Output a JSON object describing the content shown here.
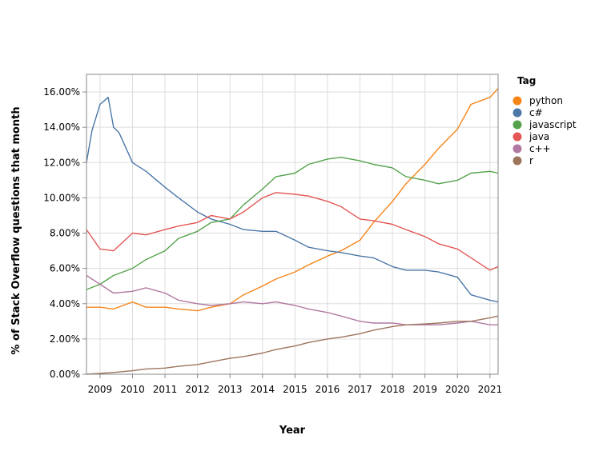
{
  "chart_data": {
    "type": "line",
    "xlabel": "Year",
    "ylabel": "% of Stack Overflow questions that month",
    "legend_title": "Tag",
    "legend_position": "right",
    "grid": true,
    "xlim": [
      "2008-08",
      "2021-04"
    ],
    "ylim": [
      0,
      17
    ],
    "y_ticks": [
      "0.00%",
      "2.00%",
      "4.00%",
      "6.00%",
      "8.00%",
      "10.00%",
      "12.00%",
      "14.00%",
      "16.00%"
    ],
    "x_ticks": [
      "2009",
      "2010",
      "2011",
      "2012",
      "2013",
      "2014",
      "2015",
      "2016",
      "2017",
      "2018",
      "2019",
      "2020",
      "2021"
    ],
    "series": [
      {
        "name": "python",
        "color": "#f58518",
        "x": [
          "2008-08",
          "2009-01",
          "2009-06",
          "2010-01",
          "2010-06",
          "2011-01",
          "2011-06",
          "2012-01",
          "2012-06",
          "2013-01",
          "2013-06",
          "2014-01",
          "2014-06",
          "2015-01",
          "2015-06",
          "2016-01",
          "2016-06",
          "2017-01",
          "2017-06",
          "2018-01",
          "2018-06",
          "2019-01",
          "2019-06",
          "2020-01",
          "2020-06",
          "2021-01",
          "2021-04"
        ],
        "y": [
          3.8,
          3.8,
          3.7,
          4.1,
          3.8,
          3.8,
          3.7,
          3.6,
          3.8,
          4.0,
          4.5,
          5.0,
          5.4,
          5.8,
          6.2,
          6.7,
          7.0,
          7.6,
          8.6,
          9.8,
          10.8,
          11.9,
          12.8,
          13.9,
          15.3,
          15.7,
          16.2
        ]
      },
      {
        "name": "c#",
        "color": "#4c78a8",
        "x": [
          "2008-08",
          "2008-10",
          "2009-01",
          "2009-04",
          "2009-06",
          "2009-08",
          "2010-01",
          "2010-06",
          "2011-01",
          "2011-06",
          "2012-01",
          "2012-06",
          "2013-01",
          "2013-06",
          "2014-01",
          "2014-06",
          "2015-01",
          "2015-06",
          "2016-01",
          "2016-06",
          "2017-01",
          "2017-06",
          "2018-01",
          "2018-06",
          "2019-01",
          "2019-06",
          "2020-01",
          "2020-06",
          "2021-01",
          "2021-04"
        ],
        "y": [
          12.0,
          13.8,
          15.3,
          15.7,
          14.0,
          13.7,
          12.0,
          11.5,
          10.6,
          10.0,
          9.2,
          8.8,
          8.5,
          8.2,
          8.1,
          8.1,
          7.6,
          7.2,
          7.0,
          6.9,
          6.7,
          6.6,
          6.1,
          5.9,
          5.9,
          5.8,
          5.5,
          4.5,
          4.2,
          4.1
        ]
      },
      {
        "name": "javascript",
        "color": "#54a24b",
        "x": [
          "2008-08",
          "2009-01",
          "2009-06",
          "2010-01",
          "2010-06",
          "2011-01",
          "2011-06",
          "2012-01",
          "2012-06",
          "2013-01",
          "2013-06",
          "2014-01",
          "2014-06",
          "2015-01",
          "2015-06",
          "2016-01",
          "2016-06",
          "2017-01",
          "2017-06",
          "2018-01",
          "2018-06",
          "2019-01",
          "2019-06",
          "2020-01",
          "2020-06",
          "2021-01",
          "2021-04"
        ],
        "y": [
          4.8,
          5.1,
          5.6,
          6.0,
          6.5,
          7.0,
          7.7,
          8.1,
          8.6,
          8.8,
          9.6,
          10.5,
          11.2,
          11.4,
          11.9,
          12.2,
          12.3,
          12.1,
          11.9,
          11.7,
          11.2,
          11.0,
          10.8,
          11.0,
          11.4,
          11.5,
          11.4
        ]
      },
      {
        "name": "java",
        "color": "#e45756",
        "x": [
          "2008-08",
          "2009-01",
          "2009-06",
          "2010-01",
          "2010-06",
          "2011-01",
          "2011-06",
          "2012-01",
          "2012-06",
          "2013-01",
          "2013-06",
          "2014-01",
          "2014-06",
          "2015-01",
          "2015-06",
          "2016-01",
          "2016-06",
          "2017-01",
          "2017-06",
          "2018-01",
          "2018-06",
          "2019-01",
          "2019-06",
          "2020-01",
          "2020-06",
          "2021-01",
          "2021-04"
        ],
        "y": [
          8.2,
          7.1,
          7.0,
          8.0,
          7.9,
          8.2,
          8.4,
          8.6,
          9.0,
          8.8,
          9.2,
          10.0,
          10.3,
          10.2,
          10.1,
          9.8,
          9.5,
          8.8,
          8.7,
          8.5,
          8.2,
          7.8,
          7.4,
          7.1,
          6.6,
          5.9,
          6.1
        ]
      },
      {
        "name": "c++",
        "color": "#b279a2",
        "x": [
          "2008-08",
          "2009-01",
          "2009-06",
          "2010-01",
          "2010-06",
          "2011-01",
          "2011-06",
          "2012-01",
          "2012-06",
          "2013-01",
          "2013-06",
          "2014-01",
          "2014-06",
          "2015-01",
          "2015-06",
          "2016-01",
          "2016-06",
          "2017-01",
          "2017-06",
          "2018-01",
          "2018-06",
          "2019-01",
          "2019-06",
          "2020-01",
          "2020-06",
          "2021-01",
          "2021-04"
        ],
        "y": [
          5.6,
          5.1,
          4.6,
          4.7,
          4.9,
          4.6,
          4.2,
          4.0,
          3.9,
          4.0,
          4.1,
          4.0,
          4.1,
          3.9,
          3.7,
          3.5,
          3.3,
          3.0,
          2.9,
          2.9,
          2.8,
          2.8,
          2.8,
          2.9,
          3.0,
          2.8,
          2.8
        ]
      },
      {
        "name": "r",
        "color": "#9d755d",
        "x": [
          "2008-08",
          "2009-01",
          "2009-06",
          "2010-01",
          "2010-06",
          "2011-01",
          "2011-06",
          "2012-01",
          "2012-06",
          "2013-01",
          "2013-06",
          "2014-01",
          "2014-06",
          "2015-01",
          "2015-06",
          "2016-01",
          "2016-06",
          "2017-01",
          "2017-06",
          "2018-01",
          "2018-06",
          "2019-01",
          "2019-06",
          "2020-01",
          "2020-06",
          "2021-01",
          "2021-04"
        ],
        "y": [
          0.0,
          0.05,
          0.1,
          0.2,
          0.3,
          0.35,
          0.45,
          0.55,
          0.7,
          0.9,
          1.0,
          1.2,
          1.4,
          1.6,
          1.8,
          2.0,
          2.1,
          2.3,
          2.5,
          2.7,
          2.8,
          2.85,
          2.9,
          3.0,
          3.0,
          3.2,
          3.3
        ]
      }
    ]
  }
}
